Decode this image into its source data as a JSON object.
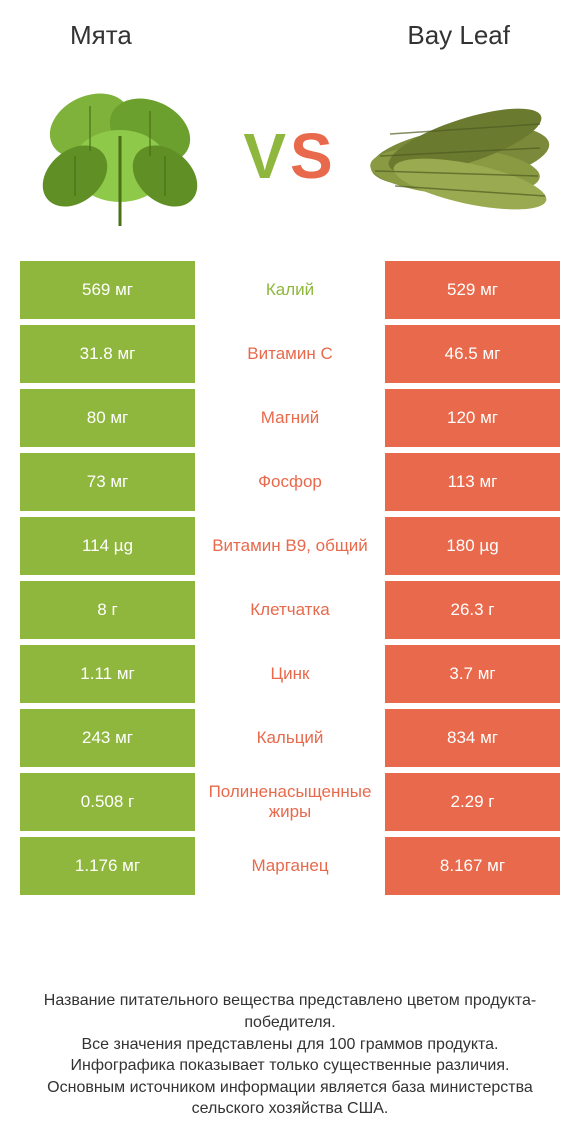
{
  "colors": {
    "left": "#8fb73e",
    "right": "#e8694b",
    "text_dark": "#333333",
    "white": "#ffffff"
  },
  "header": {
    "left_title": "Мята",
    "right_title": "Bay Leaf"
  },
  "vs": {
    "v": "V",
    "s": "S"
  },
  "rows": [
    {
      "left": "569 мг",
      "label": "Калий",
      "right": "529 мг",
      "winner": "left"
    },
    {
      "left": "31.8 мг",
      "label": "Витамин C",
      "right": "46.5 мг",
      "winner": "right"
    },
    {
      "left": "80 мг",
      "label": "Магний",
      "right": "120 мг",
      "winner": "right"
    },
    {
      "left": "73 мг",
      "label": "Фосфор",
      "right": "113 мг",
      "winner": "right"
    },
    {
      "left": "114 µg",
      "label": "Витамин B9, общий",
      "right": "180 µg",
      "winner": "right"
    },
    {
      "left": "8 г",
      "label": "Клетчатка",
      "right": "26.3 г",
      "winner": "right"
    },
    {
      "left": "1.11 мг",
      "label": "Цинк",
      "right": "3.7 мг",
      "winner": "right"
    },
    {
      "left": "243 мг",
      "label": "Кальций",
      "right": "834 мг",
      "winner": "right"
    },
    {
      "left": "0.508 г",
      "label": "Полиненасыщенные жиры",
      "right": "2.29 г",
      "winner": "right"
    },
    {
      "left": "1.176 мг",
      "label": "Марганец",
      "right": "8.167 мг",
      "winner": "right"
    }
  ],
  "footer": {
    "line1": "Название питательного вещества представлено цветом продукта-победителя.",
    "line2": "Все значения представлены для 100 граммов продукта.",
    "line3": "Инфографика показывает только существенные различия.",
    "line4": "Основным источником информации является база министерства сельского хозяйства США."
  }
}
